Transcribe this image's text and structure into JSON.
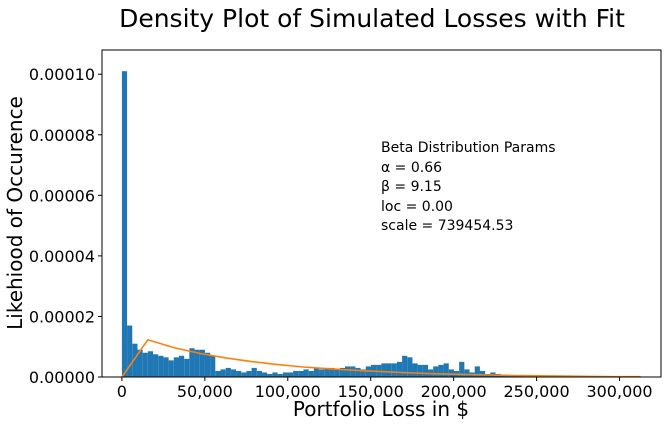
{
  "chart_data": {
    "type": "bar",
    "title": "Density Plot of Simulated Losses with Fit",
    "xlabel": "Portfolio Loss in $",
    "ylabel": "Likehiood of Occurence",
    "xlim": [
      -12000,
      325000
    ],
    "ylim": [
      0,
      0.000108
    ],
    "xticks": [
      0,
      50000,
      100000,
      150000,
      200000,
      250000,
      300000
    ],
    "xtick_labels": [
      "0",
      "50,000",
      "100,000",
      "150,000",
      "200,000",
      "250,000",
      "300,000"
    ],
    "yticks": [
      0,
      2e-05,
      4e-05,
      6e-05,
      8e-05,
      0.0001
    ],
    "ytick_labels": [
      "0.00000",
      "0.00002",
      "0.00004",
      "0.00006",
      "0.00008",
      "0.00010"
    ],
    "grid": false,
    "histogram": {
      "name": "Simulated losses",
      "color": "#1f77b4",
      "bin_start": 0,
      "bin_width": 3128,
      "values": [
        0.000101,
        1.7e-05,
        1.1e-05,
        9e-06,
        8e-06,
        8.5e-06,
        7.5e-06,
        7e-06,
        6.5e-06,
        5.5e-06,
        6.5e-06,
        7e-06,
        6e-06,
        9.5e-06,
        9e-06,
        9e-06,
        8e-06,
        7e-06,
        2e-06,
        2.5e-06,
        3e-06,
        2.5e-06,
        2e-06,
        1.5e-06,
        2e-06,
        3e-06,
        2e-06,
        1.5e-06,
        1e-06,
        1.5e-06,
        1e-06,
        1.5e-06,
        1.5e-06,
        2e-06,
        2e-06,
        2.5e-06,
        2e-06,
        3e-06,
        2.5e-06,
        3e-06,
        3e-06,
        2.5e-06,
        3e-06,
        3.5e-06,
        3.5e-06,
        3e-06,
        2.5e-06,
        3.5e-06,
        4e-06,
        4e-06,
        4.5e-06,
        4.5e-06,
        4.5e-06,
        5e-06,
        7e-06,
        6.5e-06,
        4.5e-06,
        4e-06,
        4e-06,
        2.5e-06,
        3.5e-06,
        4e-06,
        4.5e-06,
        2.5e-06,
        2e-06,
        5e-06,
        2.5e-06,
        1.5e-06,
        3.5e-06,
        2e-06,
        1e-06,
        1.5e-06,
        1e-06,
        5e-07,
        5e-07,
        5e-07,
        5e-07,
        3e-07,
        3e-07,
        2e-07,
        3e-07,
        2e-07,
        2e-07,
        3e-07,
        2e-07,
        2e-07,
        5e-07,
        2e-07,
        2e-07,
        2e-07,
        2e-07,
        2e-07,
        2e-07,
        2e-07,
        2e-07,
        2e-07,
        2e-07,
        2e-07,
        2e-07,
        2e-07
      ]
    },
    "fit_line": {
      "name": "Beta fit",
      "color": "#ff7f0e",
      "x": [
        0,
        15640,
        31280,
        46920,
        62560,
        78200,
        93840,
        109480,
        125120,
        140760,
        156400,
        172040,
        187680,
        203320,
        218960,
        234600,
        250240,
        265880,
        281520,
        297160,
        312800
      ],
      "y": [
        0,
        1.23e-05,
        9.7e-06,
        7.8e-06,
        6.3e-06,
        5.1e-06,
        4.1e-06,
        3.3e-06,
        2.7e-06,
        2.2e-06,
        1.8e-06,
        1.4e-06,
        1.1e-06,
        9e-07,
        7e-07,
        5e-07,
        4e-07,
        3e-07,
        2e-07,
        1e-07,
        1e-07
      ]
    },
    "annotation": {
      "lines": [
        "Beta Distribution Params",
        "α = 0.66",
        "β = 9.15",
        "loc = 0.00",
        "scale = 739454.53"
      ]
    }
  }
}
